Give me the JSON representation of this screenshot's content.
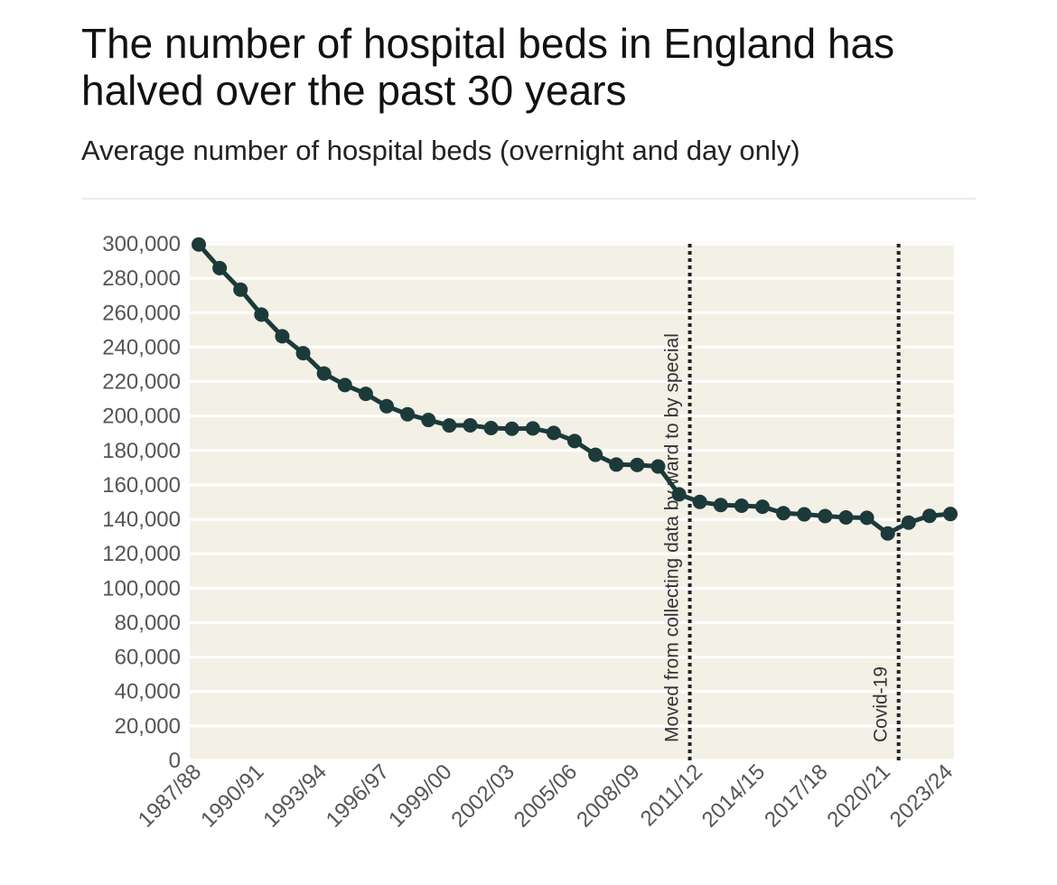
{
  "header": {
    "title": "The number of hospital beds in England has halved over the past 30 years",
    "subtitle": "Average number of hospital beds (overnight and day only)"
  },
  "colors": {
    "line": "#1c3a3a",
    "plot_bg": "#f3f0e6",
    "grid": "#ffffff",
    "annotation_line": "#222222"
  },
  "chart_data": {
    "type": "line",
    "title": "The number of hospital beds in England has halved over the past 30 years",
    "subtitle": "Average number of hospital beds (overnight and day only)",
    "xlabel": "",
    "ylabel": "",
    "ylim": [
      0,
      300000
    ],
    "yticks": [
      0,
      20000,
      40000,
      60000,
      80000,
      100000,
      120000,
      140000,
      160000,
      180000,
      200000,
      220000,
      240000,
      260000,
      280000,
      300000
    ],
    "ytick_labels": [
      "0",
      "20,000",
      "40,000",
      "60,000",
      "80,000",
      "100,000",
      "120,000",
      "140,000",
      "160,000",
      "180,000",
      "200,000",
      "220,000",
      "240,000",
      "260,000",
      "280,000",
      "300,000"
    ],
    "grid": true,
    "categories": [
      "1987/88",
      "1988/89",
      "1989/90",
      "1990/91",
      "1991/92",
      "1992/93",
      "1993/94",
      "1994/95",
      "1995/96",
      "1996/97",
      "1997/98",
      "1998/99",
      "1999/00",
      "2000/01",
      "2001/02",
      "2002/03",
      "2003/04",
      "2004/05",
      "2005/06",
      "2006/07",
      "2007/08",
      "2008/09",
      "2009/10",
      "2010/11",
      "2011/12",
      "2012/13",
      "2013/14",
      "2014/15",
      "2015/16",
      "2016/17",
      "2017/18",
      "2018/19",
      "2019/20",
      "2020/21",
      "2021/22",
      "2022/23",
      "2023/24"
    ],
    "xtick_labels": [
      "1987/88",
      "1990/91",
      "1993/94",
      "1996/97",
      "1999/00",
      "2002/03",
      "2005/06",
      "2008/09",
      "2011/12",
      "2014/15",
      "2017/18",
      "2020/21",
      "2023/24"
    ],
    "series": [
      {
        "name": "Average number of hospital beds",
        "values": [
          299600,
          285900,
          273400,
          258900,
          246300,
          236500,
          224700,
          218000,
          212900,
          205700,
          201000,
          197700,
          194500,
          194600,
          193000,
          192600,
          192800,
          190200,
          185500,
          177500,
          171800,
          171600,
          170700,
          154500,
          150100,
          148300,
          147900,
          147300,
          143600,
          142900,
          141900,
          141100,
          140900,
          131800,
          138100,
          142000,
          143100
        ]
      }
    ],
    "annotations": [
      {
        "x": "2010/11",
        "label": "Moved from collecting data by ward to by special"
      },
      {
        "x": "2020/21",
        "label": "Covid-19"
      }
    ]
  }
}
